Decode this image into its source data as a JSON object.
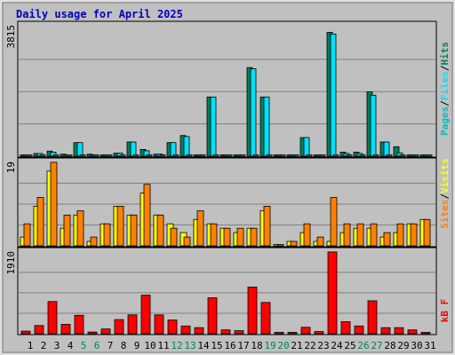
{
  "title": "Daily usage for April 2025",
  "colors": {
    "background": "#c0c0c0",
    "title": "#0000c0",
    "hits": "#00805c",
    "files": "#00e0ff",
    "pages": "#00c0c0",
    "visits": "#ffff00",
    "sites": "#ff8000",
    "kbytes": "#ff0000",
    "weekend_label": "#00805c",
    "weekday_label": "#000000",
    "grid": "#808080"
  },
  "chart_data": [
    {
      "type": "bar",
      "panel": "hits-files-pages",
      "axis_max_label": "3815",
      "ylim": [
        0,
        3815
      ],
      "side_label": [
        "Pages",
        "/",
        "Files",
        "/",
        "Hits"
      ],
      "categories": [
        "1",
        "2",
        "3",
        "4",
        "5",
        "6",
        "7",
        "8",
        "9",
        "10",
        "11",
        "12",
        "13",
        "14",
        "15",
        "16",
        "17",
        "18",
        "19",
        "20",
        "21",
        "22",
        "23",
        "24",
        "25",
        "26",
        "27",
        "28",
        "29",
        "30",
        "31"
      ],
      "weekend_days": [
        5,
        6,
        12,
        13,
        19,
        20,
        26,
        27
      ],
      "series": [
        {
          "name": "Hits",
          "values": [
            40,
            80,
            150,
            60,
            400,
            60,
            40,
            90,
            420,
            200,
            60,
            400,
            610,
            0,
            1750,
            40,
            40,
            2620,
            1750,
            0,
            0,
            550,
            0,
            3660,
            120,
            120,
            1900,
            420,
            280,
            0,
            0
          ]
        },
        {
          "name": "Files",
          "values": [
            40,
            80,
            120,
            40,
            400,
            40,
            40,
            90,
            420,
            160,
            60,
            400,
            580,
            0,
            1750,
            40,
            40,
            2580,
            1750,
            0,
            0,
            550,
            0,
            3610,
            80,
            80,
            1800,
            420,
            100,
            0,
            0
          ]
        },
        {
          "name": "Pages",
          "values": [
            0,
            0,
            0,
            0,
            0,
            0,
            0,
            0,
            0,
            0,
            0,
            0,
            0,
            0,
            0,
            0,
            0,
            0,
            0,
            0,
            0,
            0,
            0,
            0,
            0,
            0,
            0,
            0,
            0,
            0,
            0
          ]
        }
      ]
    },
    {
      "type": "bar",
      "panel": "visits-sites",
      "axis_max_label": "19",
      "ylim": [
        0,
        19
      ],
      "side_label": [
        "Sites",
        "/",
        "Visits"
      ],
      "categories": [
        "1",
        "2",
        "3",
        "4",
        "5",
        "6",
        "7",
        "8",
        "9",
        "10",
        "11",
        "12",
        "13",
        "14",
        "15",
        "16",
        "17",
        "18",
        "19",
        "20",
        "21",
        "22",
        "23",
        "24",
        "25",
        "26",
        "27",
        "28",
        "29",
        "30",
        "31"
      ],
      "weekend_days": [
        5,
        6,
        12,
        13,
        19,
        20,
        26,
        27
      ],
      "series": [
        {
          "name": "Visits",
          "values": [
            2,
            9,
            17,
            4,
            7,
            1,
            5,
            9,
            7,
            12,
            7,
            5,
            3,
            6,
            5,
            4,
            3,
            4,
            8,
            0,
            1,
            3,
            1,
            1,
            3,
            4,
            4,
            2,
            3,
            5,
            6
          ]
        },
        {
          "name": "Sites",
          "values": [
            5,
            11,
            19,
            7,
            8,
            2,
            5,
            9,
            7,
            14,
            7,
            4,
            2,
            8,
            5,
            4,
            4,
            4,
            9,
            0,
            1,
            5,
            2,
            11,
            5,
            5,
            5,
            3,
            5,
            5,
            6
          ]
        }
      ]
    },
    {
      "type": "bar",
      "panel": "kbytes",
      "axis_max_label": "1910",
      "ylim": [
        0,
        1910
      ],
      "side_label": [
        "kB",
        "F"
      ],
      "categories": [
        "1",
        "2",
        "3",
        "4",
        "5",
        "6",
        "7",
        "8",
        "9",
        "10",
        "11",
        "12",
        "13",
        "14",
        "15",
        "16",
        "17",
        "18",
        "19",
        "20",
        "21",
        "22",
        "23",
        "24",
        "25",
        "26",
        "27",
        "28",
        "29",
        "30",
        "31"
      ],
      "weekend_days": [
        5,
        6,
        12,
        13,
        19,
        20,
        26,
        27
      ],
      "series": [
        {
          "name": "kB F",
          "values": [
            60,
            190,
            750,
            220,
            430,
            40,
            110,
            330,
            440,
            900,
            440,
            320,
            180,
            140,
            840,
            90,
            70,
            1090,
            730,
            10,
            0,
            150,
            50,
            1910,
            280,
            180,
            770,
            140,
            140,
            90,
            0
          ]
        }
      ]
    }
  ]
}
